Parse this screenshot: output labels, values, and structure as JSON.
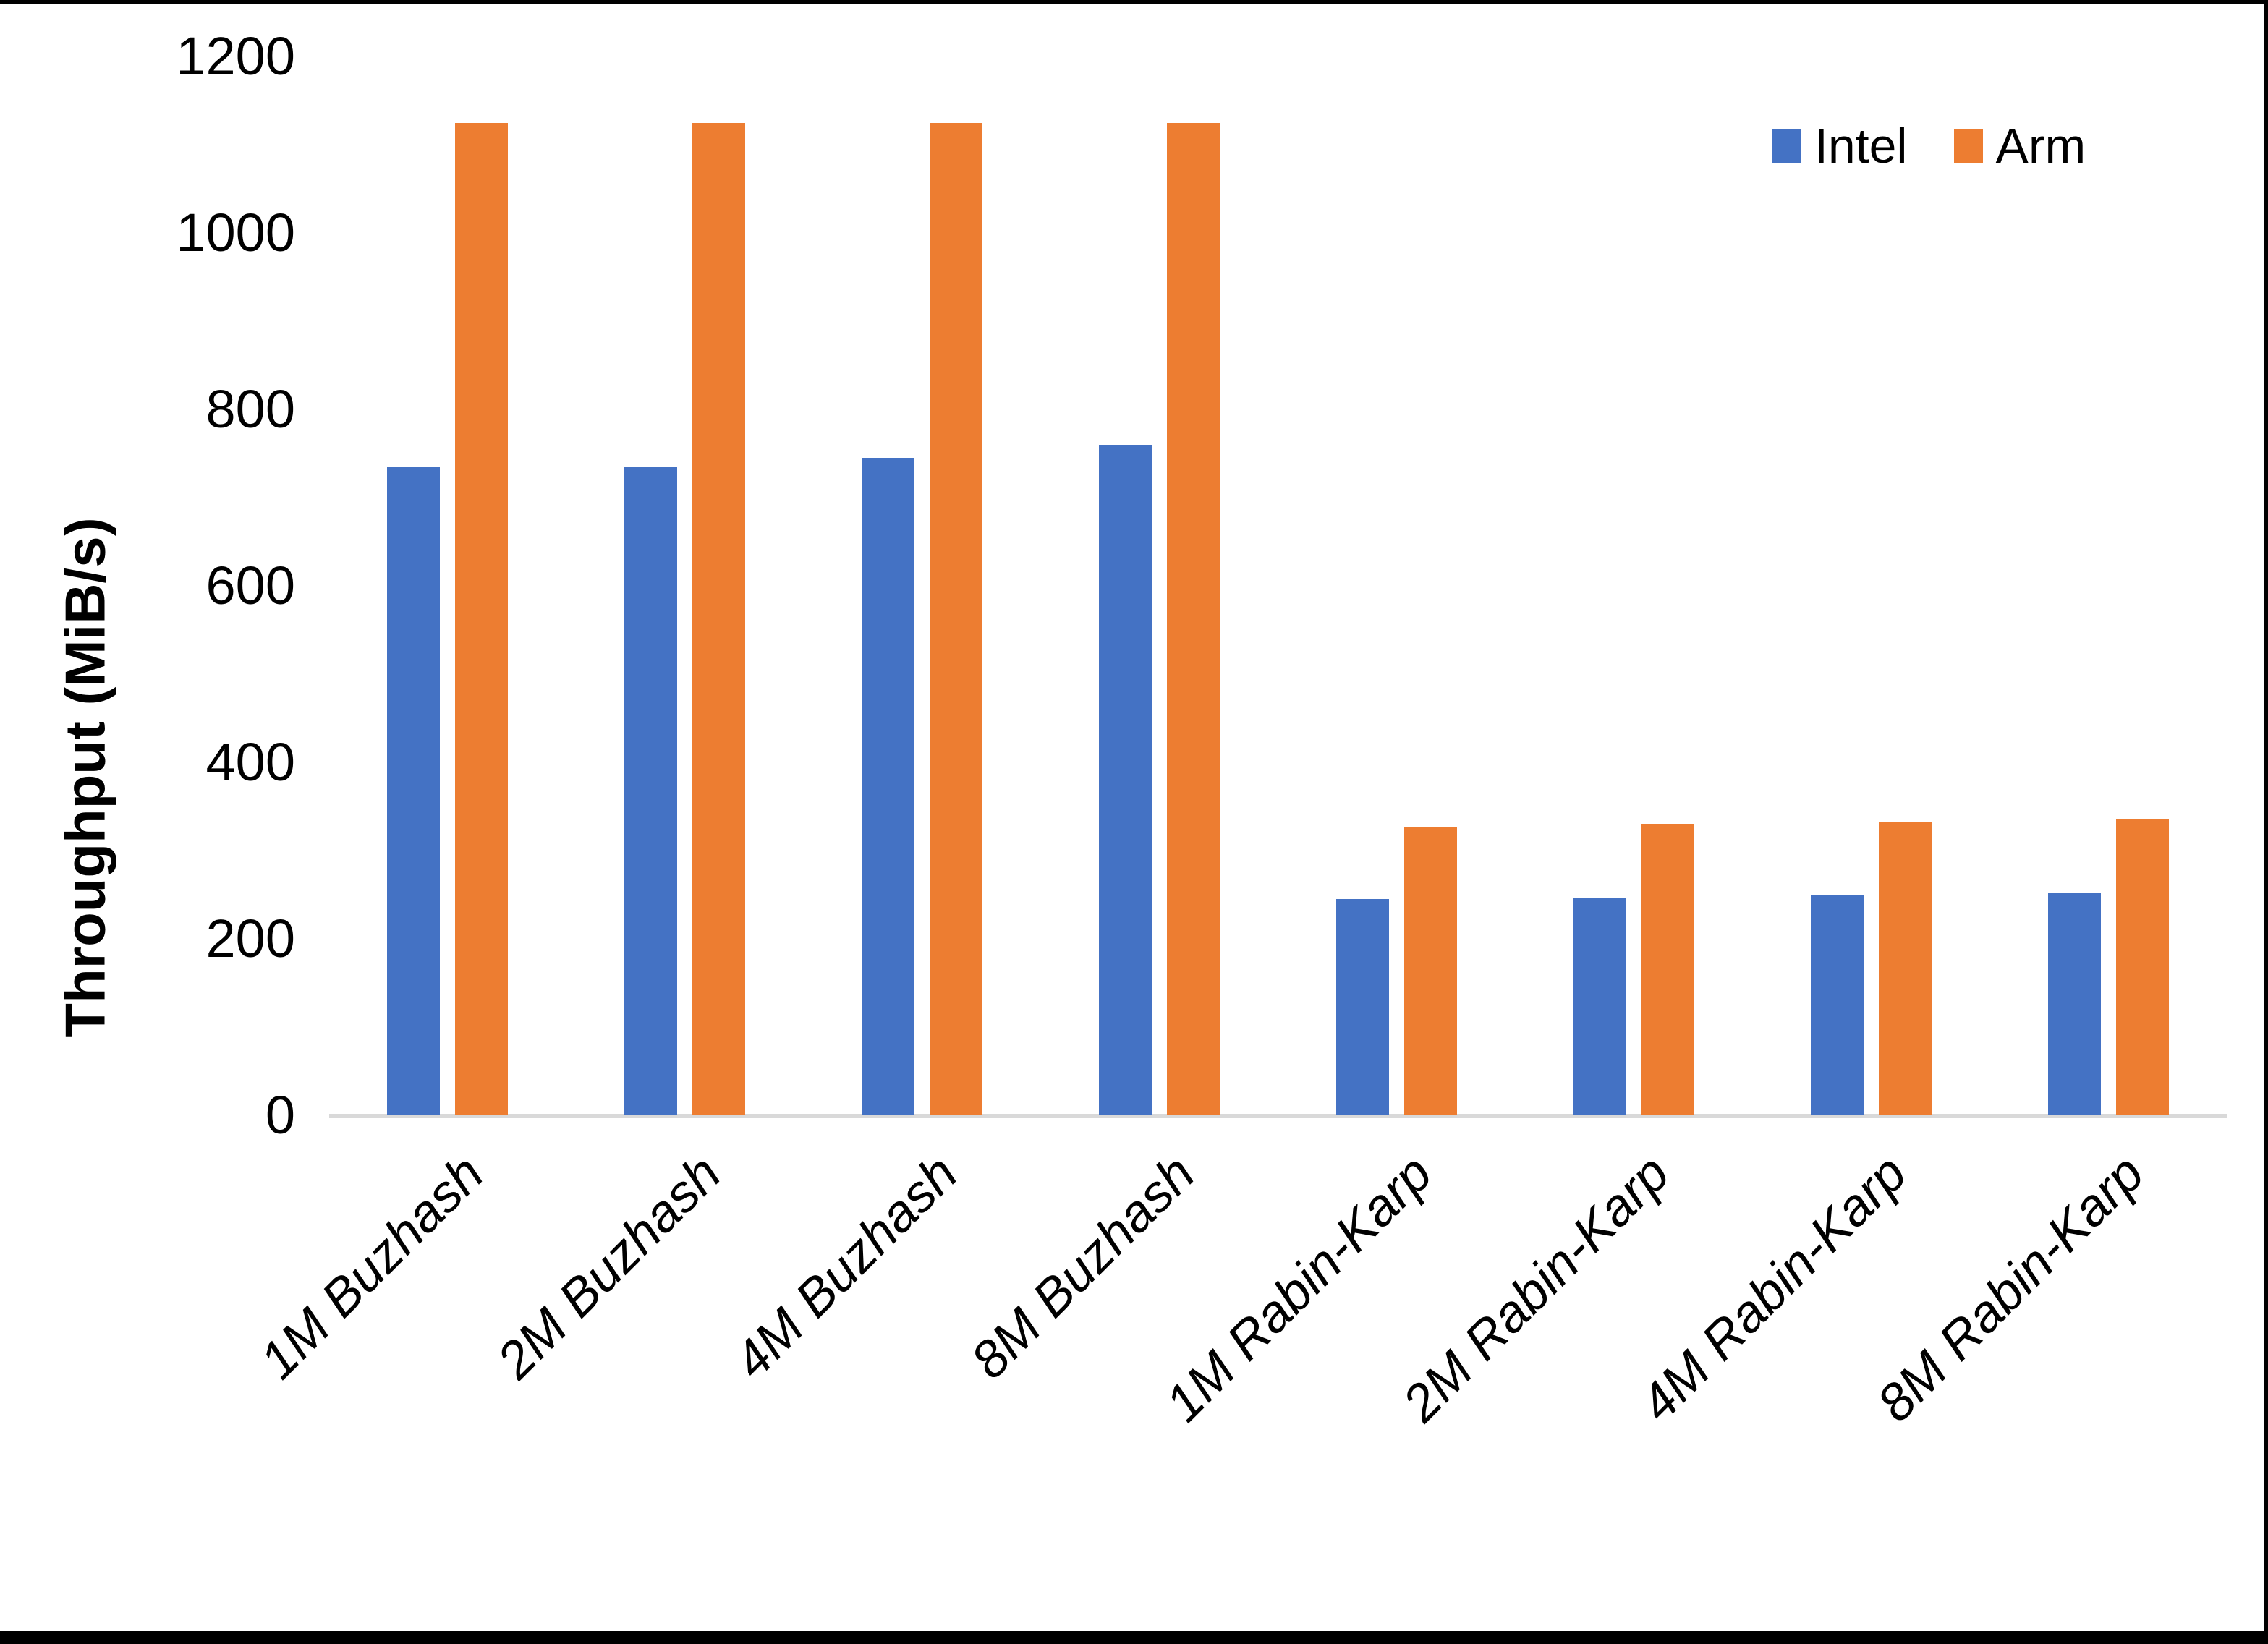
{
  "chart_data": {
    "type": "bar",
    "title": "",
    "xlabel": "",
    "ylabel": "Throughput (MiB/s)",
    "categories": [
      "1M Buzhash",
      "2M Buzhash",
      "4M Buzhash",
      "8M Buzhash",
      "1M Rabin-Karp",
      "2M Rabin-Karp",
      "4M Rabin-Karp",
      "8M Rabin-Karp"
    ],
    "series": [
      {
        "name": "Intel",
        "color": "#4472C4",
        "values": [
          735,
          735,
          745,
          760,
          245,
          247,
          250,
          252
        ]
      },
      {
        "name": "Arm",
        "color": "#ED7D31",
        "values": [
          1125,
          1125,
          1125,
          1125,
          327,
          330,
          333,
          336
        ]
      }
    ],
    "ylim": [
      0,
      1200
    ],
    "yticks": [
      "0",
      "200",
      "400",
      "600",
      "800",
      "1000",
      "1200"
    ],
    "grid": false,
    "legend_position": "top-right",
    "category_label_rotation_deg": 45,
    "axis_line_color": "#D9D9D9",
    "text_color": "#000000",
    "background_color": "#FFFFFF",
    "frame_border_color": "#000000"
  }
}
